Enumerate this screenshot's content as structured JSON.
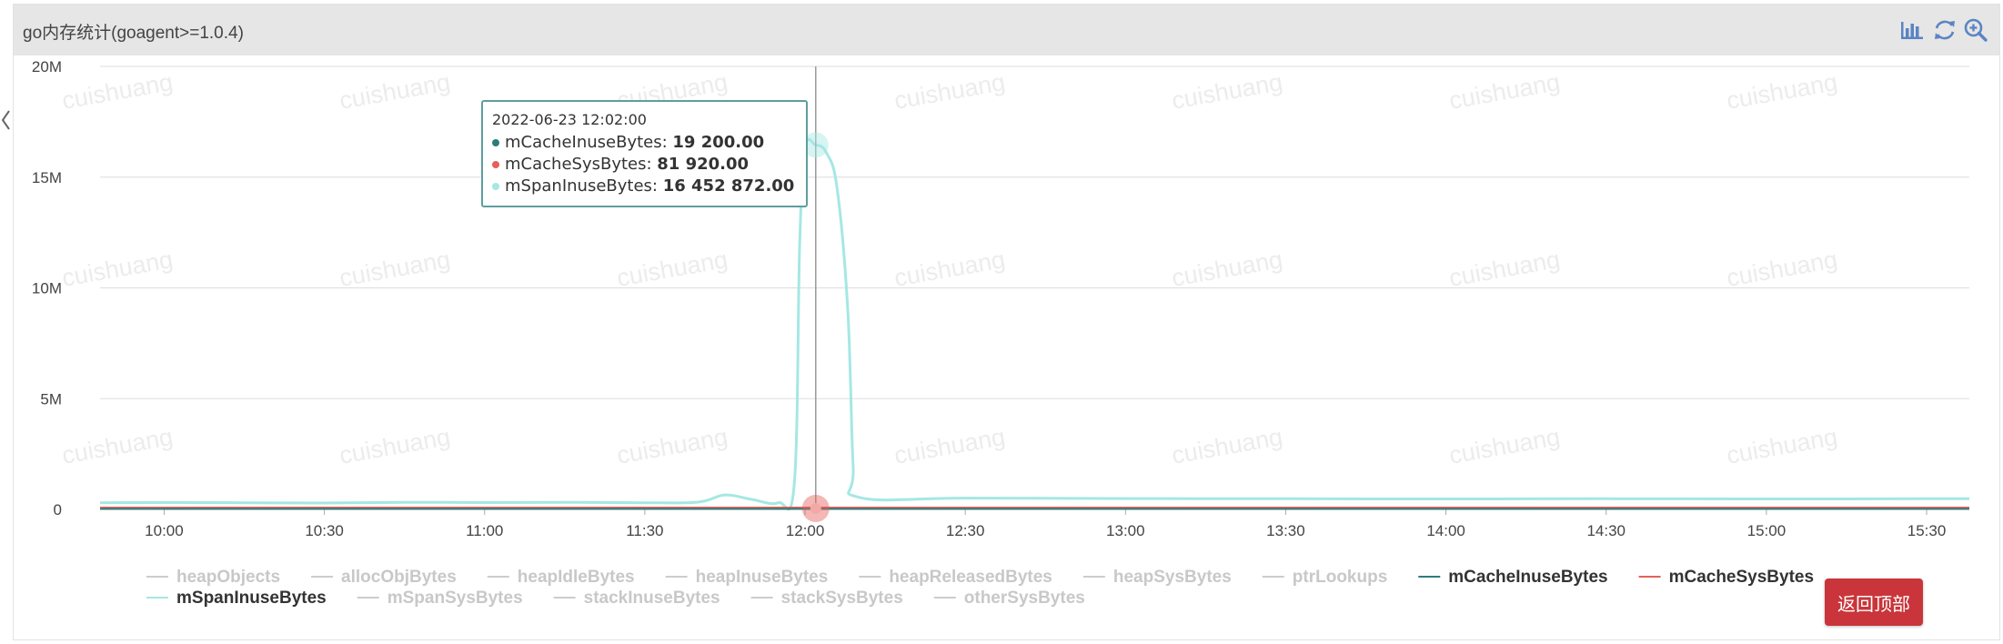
{
  "panel": {
    "title": "go内存统计(goagent>=1.0.4)"
  },
  "toolbar": {
    "bar_icon": "bar-chart-icon",
    "refresh_icon": "refresh-icon",
    "zoom_icon": "zoom-in-icon"
  },
  "watermark": "cuishuang",
  "back_to_top": "返回顶部",
  "tooltip": {
    "time": "2022-06-23 12:02:00",
    "rows": [
      {
        "name": "mCacheInuseBytes",
        "value": "19 200.00",
        "color": "#2f7b7b"
      },
      {
        "name": "mCacheSysBytes",
        "value": "81 920.00",
        "color": "#e5605a"
      },
      {
        "name": "mSpanInuseBytes",
        "value": "16 452 872.00",
        "color": "#a5e7e3"
      }
    ]
  },
  "chart_data": {
    "type": "line",
    "x_ticks": [
      "10:00",
      "10:30",
      "11:00",
      "11:30",
      "12:00",
      "12:30",
      "13:00",
      "13:30",
      "14:00",
      "14:30",
      "15:00",
      "15:30"
    ],
    "y_ticks": [
      "0",
      "5M",
      "10M",
      "15M",
      "20M"
    ],
    "xlim": [
      "09:48",
      "15:38"
    ],
    "ylim": [
      0,
      20000000
    ],
    "grid": true,
    "legend_position": "bottom",
    "legend": [
      {
        "name": "heapObjects",
        "active": false
      },
      {
        "name": "allocObjBytes",
        "active": false
      },
      {
        "name": "heapIdleBytes",
        "active": false
      },
      {
        "name": "heapInuseBytes",
        "active": false
      },
      {
        "name": "heapReleasedBytes",
        "active": false
      },
      {
        "name": "heapSysBytes",
        "active": false
      },
      {
        "name": "ptrLookups",
        "active": false
      },
      {
        "name": "mCacheInuseBytes",
        "active": true,
        "color": "#2f7b7b"
      },
      {
        "name": "mCacheSysBytes",
        "active": true,
        "color": "#e5605a"
      },
      {
        "name": "mSpanInuseBytes",
        "active": true,
        "color": "#a5e7e3"
      },
      {
        "name": "mSpanSysBytes",
        "active": false
      },
      {
        "name": "stackInuseBytes",
        "active": false
      },
      {
        "name": "stackSysBytes",
        "active": false
      },
      {
        "name": "otherSysBytes",
        "active": false
      }
    ],
    "series": [
      {
        "name": "mSpanInuseBytes",
        "color": "#a5e7e3",
        "points": [
          [
            "09:48",
            300000
          ],
          [
            "10:00",
            310000
          ],
          [
            "10:15",
            300000
          ],
          [
            "10:30",
            290000
          ],
          [
            "10:45",
            320000
          ],
          [
            "11:00",
            310000
          ],
          [
            "11:15",
            320000
          ],
          [
            "11:30",
            300000
          ],
          [
            "11:40",
            330000
          ],
          [
            "11:45",
            650000
          ],
          [
            "11:50",
            450000
          ],
          [
            "11:55",
            300000
          ],
          [
            "11:58",
            1200000
          ],
          [
            "11:59",
            12000000
          ],
          [
            "12:00",
            16300000
          ],
          [
            "12:02",
            16452872
          ],
          [
            "12:04",
            16100000
          ],
          [
            "12:06",
            14500000
          ],
          [
            "12:08",
            9000000
          ],
          [
            "12:09",
            2000000
          ],
          [
            "12:10",
            550000
          ],
          [
            "12:30",
            510000
          ],
          [
            "13:00",
            490000
          ],
          [
            "13:30",
            480000
          ],
          [
            "14:00",
            470000
          ],
          [
            "14:30",
            480000
          ],
          [
            "15:00",
            470000
          ],
          [
            "15:30",
            480000
          ],
          [
            "15:38",
            480000
          ]
        ]
      },
      {
        "name": "mCacheSysBytes",
        "color": "#e5605a",
        "points": [
          [
            "09:48",
            81920
          ],
          [
            "12:00",
            81920
          ],
          [
            "12:02",
            81920
          ],
          [
            "15:38",
            81920
          ]
        ]
      },
      {
        "name": "mCacheInuseBytes",
        "color": "#2f7b7b",
        "points": [
          [
            "09:48",
            19200
          ],
          [
            "12:02",
            19200
          ],
          [
            "15:38",
            19200
          ]
        ]
      }
    ],
    "cursor_x": "12:02"
  }
}
